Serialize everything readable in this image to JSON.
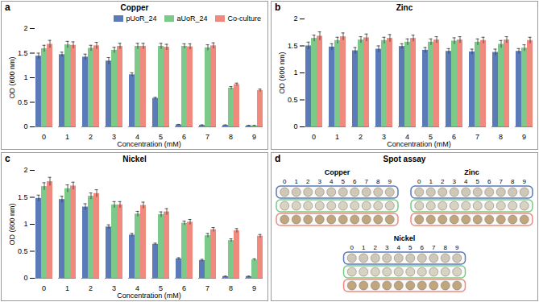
{
  "chart_data": [
    {
      "type": "bar",
      "panel_label": "a",
      "title": "Copper",
      "xlabel": "Concentration (mM)",
      "ylabel": "OD (600 nm)",
      "categories": [
        "0",
        "1",
        "2",
        "3",
        "4",
        "5",
        "6",
        "7",
        "8",
        "9"
      ],
      "ylim": [
        0,
        2
      ],
      "yticks": [
        0,
        0.5,
        1,
        1.5,
        2
      ],
      "grid": false,
      "legend": "top-right",
      "series": [
        {
          "name": "pUoR_24",
          "color": "#5b7bb8",
          "values": [
            1.44,
            1.47,
            1.42,
            1.34,
            1.06,
            0.58,
            0.04,
            0.03,
            0.03,
            0.02
          ],
          "errors": [
            0.06,
            0.05,
            0.06,
            0.07,
            0.04,
            0.02,
            0.01,
            0.01,
            0.01,
            0.01
          ]
        },
        {
          "name": "aUoR_24",
          "color": "#7dc98a",
          "values": [
            1.59,
            1.67,
            1.6,
            1.56,
            1.64,
            1.64,
            1.64,
            1.61,
            0.79,
            0.02
          ],
          "errors": [
            0.07,
            0.07,
            0.06,
            0.06,
            0.06,
            0.06,
            0.05,
            0.06,
            0.03,
            0.01
          ]
        },
        {
          "name": "Co-culture",
          "color": "#f08a7e",
          "values": [
            1.68,
            1.66,
            1.65,
            1.64,
            1.64,
            1.62,
            1.63,
            1.65,
            0.86,
            0.74
          ],
          "errors": [
            0.08,
            0.07,
            0.07,
            0.06,
            0.06,
            0.06,
            0.06,
            0.06,
            0.03,
            0.03
          ]
        }
      ]
    },
    {
      "type": "bar",
      "panel_label": "b",
      "title": "Zinc",
      "xlabel": "Concentration (mM)",
      "ylabel": "OD (600 nm)",
      "categories": [
        "0",
        "1",
        "2",
        "3",
        "4",
        "5",
        "6",
        "7",
        "8",
        "9"
      ],
      "ylim": [
        0,
        2
      ],
      "yticks": [
        0,
        0.5,
        1,
        1.5,
        2
      ],
      "grid": false,
      "series": [
        {
          "name": "pUoR_24",
          "color": "#5b7bb8",
          "values": [
            1.5,
            1.48,
            1.41,
            1.44,
            1.49,
            1.42,
            1.4,
            1.39,
            1.38,
            1.4
          ],
          "errors": [
            0.07,
            0.06,
            0.06,
            0.06,
            0.05,
            0.05,
            0.05,
            0.05,
            0.06,
            0.05
          ]
        },
        {
          "name": "aUoR_24",
          "color": "#7dc98a",
          "values": [
            1.64,
            1.6,
            1.61,
            1.6,
            1.57,
            1.57,
            1.59,
            1.57,
            1.53,
            1.46
          ],
          "errors": [
            0.06,
            0.06,
            0.06,
            0.06,
            0.06,
            0.06,
            0.06,
            0.06,
            0.07,
            0.06
          ]
        },
        {
          "name": "Co-culture",
          "color": "#f08a7e",
          "values": [
            1.68,
            1.67,
            1.65,
            1.64,
            1.64,
            1.61,
            1.61,
            1.6,
            1.61,
            1.6
          ],
          "errors": [
            0.08,
            0.07,
            0.07,
            0.07,
            0.06,
            0.06,
            0.06,
            0.06,
            0.06,
            0.06
          ]
        }
      ]
    },
    {
      "type": "bar",
      "panel_label": "c",
      "title": "Nickel",
      "xlabel": "Concentration (mM)",
      "ylabel": "OD (600 nm)",
      "categories": [
        "0",
        "1",
        "2",
        "3",
        "4",
        "5",
        "6",
        "7",
        "8",
        "9"
      ],
      "ylim": [
        0,
        2
      ],
      "yticks": [
        0,
        0.5,
        1,
        1.5,
        2
      ],
      "grid": false,
      "series": [
        {
          "name": "pUoR_24",
          "color": "#5b7bb8",
          "values": [
            1.48,
            1.46,
            1.32,
            0.95,
            0.8,
            0.63,
            0.36,
            0.33,
            0.03,
            0.03
          ],
          "errors": [
            0.06,
            0.06,
            0.06,
            0.04,
            0.03,
            0.02,
            0.02,
            0.02,
            0.01,
            0.01
          ]
        },
        {
          "name": "aUoR_24",
          "color": "#7dc98a",
          "values": [
            1.7,
            1.66,
            1.52,
            1.36,
            1.19,
            1.18,
            1.02,
            0.79,
            0.7,
            0.34
          ],
          "errors": [
            0.07,
            0.07,
            0.06,
            0.06,
            0.05,
            0.05,
            0.04,
            0.04,
            0.03,
            0.02
          ]
        },
        {
          "name": "Co-culture",
          "color": "#f08a7e",
          "values": [
            1.79,
            1.71,
            1.57,
            1.36,
            1.35,
            1.23,
            1.04,
            0.9,
            0.88,
            0.78
          ],
          "errors": [
            0.08,
            0.07,
            0.07,
            0.06,
            0.06,
            0.06,
            0.05,
            0.04,
            0.04,
            0.03
          ]
        }
      ]
    }
  ],
  "spot_assay": {
    "panel_label": "d",
    "title": "Spot assay",
    "panels": [
      {
        "title": "Copper",
        "concentrations": [
          0,
          1,
          2,
          3,
          4,
          5,
          6,
          7,
          8,
          9
        ]
      },
      {
        "title": "Zinc",
        "concentrations": [
          0,
          1,
          2,
          3,
          4,
          5,
          6,
          7,
          8,
          9
        ]
      },
      {
        "title": "Nickel",
        "concentrations": [
          0,
          1,
          2,
          3,
          4,
          5,
          6,
          7,
          8,
          9
        ]
      }
    ]
  }
}
